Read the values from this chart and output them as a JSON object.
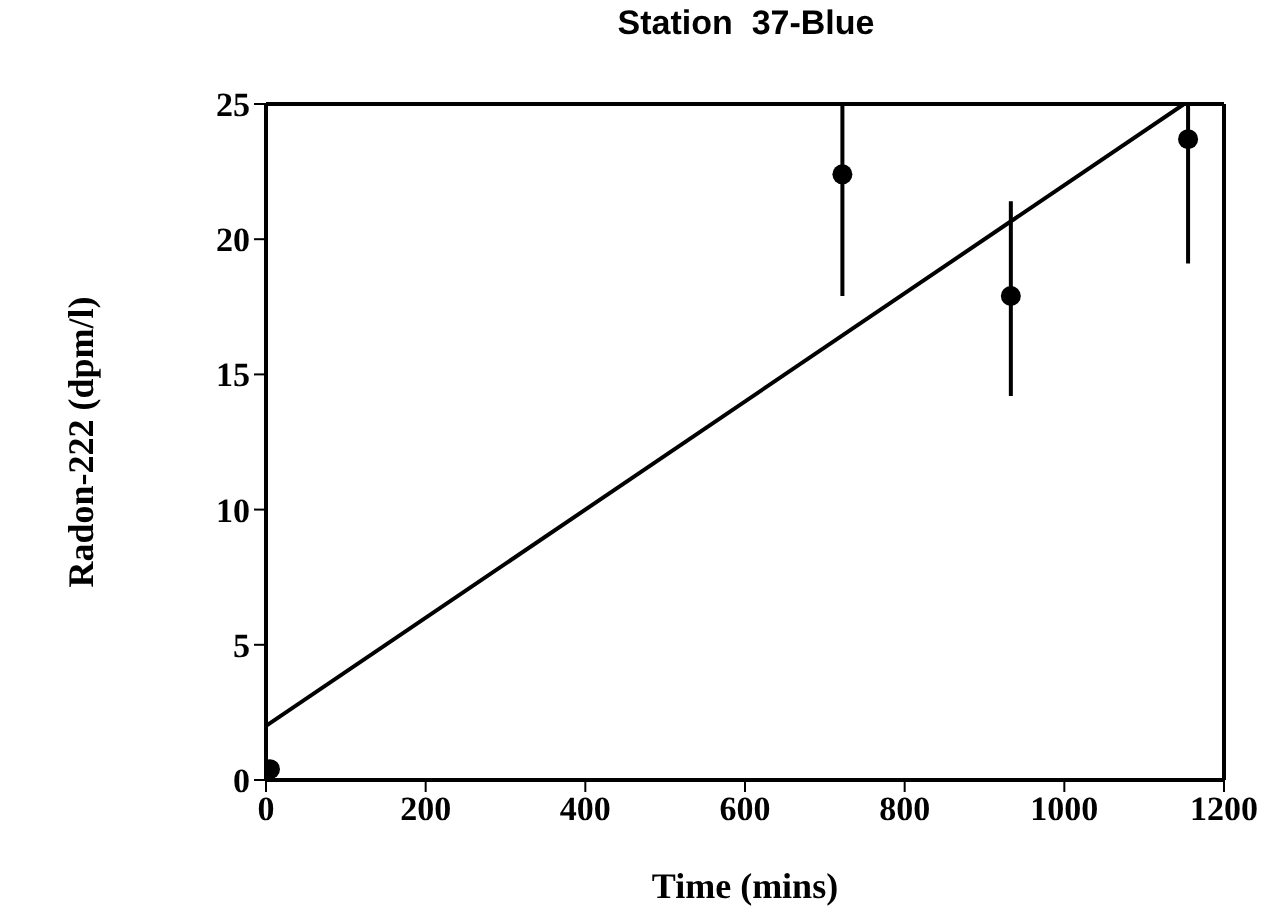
{
  "chart_data": {
    "type": "scatter",
    "title": "Station  37-Blue",
    "xlabel": "Time  (mins)",
    "ylabel": "Radon-222  (dpm/l)",
    "series": [
      {
        "color": "#000000",
        "x": [
          5,
          722,
          933,
          1155
        ],
        "values": [
          0.4,
          22.4,
          17.9,
          23.7
        ],
        "errors": [
          null,
          [
            17.9,
            25
          ],
          [
            14.2,
            21.4
          ],
          [
            19.1,
            25
          ]
        ],
        "marker": "circle"
      },
      {
        "type": "line",
        "color": "#000000",
        "x": [
          0,
          1150
        ],
        "values": [
          2,
          25
        ],
        "marker": "none",
        "line_style": "solid"
      }
    ],
    "xlim": [
      0,
      1200
    ],
    "xticks": [
      0,
      200,
      400,
      600,
      800,
      1000,
      1200
    ],
    "ylim": [
      0,
      25
    ],
    "yticks": [
      0,
      5,
      10,
      15,
      20,
      25
    ],
    "grid": false,
    "legend": false
  }
}
